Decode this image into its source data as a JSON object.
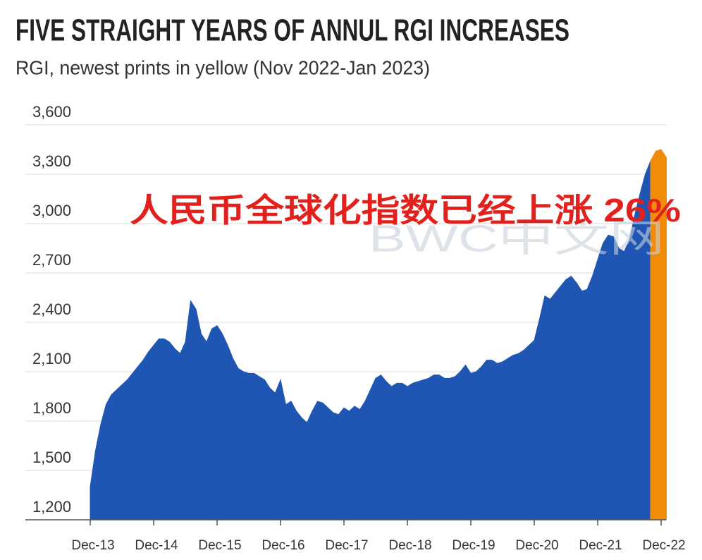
{
  "chart_data": {
    "type": "area",
    "title": "FIVE STRAIGHT YEARS OF ANNUL RGI INCREASES",
    "subtitle": "RGI, newest prints in yellow (Nov 2022-Jan 2023)",
    "annotation": "人民币全球化指数已经上涨 26%",
    "watermark": "BWC中文网",
    "categories": [
      "Dec-13",
      null,
      null,
      null,
      null,
      null,
      null,
      null,
      null,
      null,
      null,
      null,
      "Dec-14",
      null,
      null,
      null,
      null,
      null,
      null,
      null,
      null,
      null,
      null,
      null,
      "Dec-15",
      null,
      null,
      null,
      null,
      null,
      null,
      null,
      null,
      null,
      null,
      null,
      "Dec-16",
      null,
      null,
      null,
      null,
      null,
      null,
      null,
      null,
      null,
      null,
      null,
      "Dec-17",
      null,
      null,
      null,
      null,
      null,
      null,
      null,
      null,
      null,
      null,
      null,
      "Dec-18",
      null,
      null,
      null,
      null,
      null,
      null,
      null,
      null,
      null,
      null,
      null,
      "Dec-19",
      null,
      null,
      null,
      null,
      null,
      null,
      null,
      null,
      null,
      null,
      null,
      "Dec-20",
      null,
      null,
      null,
      null,
      null,
      null,
      null,
      null,
      null,
      null,
      null,
      "Dec-21",
      null,
      null,
      null,
      null,
      null,
      null,
      null,
      null,
      null,
      null,
      null,
      "Dec-22",
      null
    ],
    "series": [
      {
        "color": "#1f56b4",
        "values": [
          1400,
          1620,
          1780,
          1900,
          1960,
          1990,
          2020,
          2050,
          2090,
          2130,
          2170,
          2220,
          2260,
          2300,
          2300,
          2280,
          2240,
          2210,
          2280,
          2530,
          2480,
          2330,
          2280,
          2360,
          2380,
          2330,
          2260,
          2180,
          2120,
          2100,
          2090,
          2090,
          2070,
          2050,
          2000,
          1970,
          2050,
          1900,
          1920,
          1860,
          1820,
          1790,
          1860,
          1920,
          1910,
          1880,
          1850,
          1840,
          1880,
          1860,
          1890,
          1870,
          1920,
          1990,
          2060,
          2080,
          2040,
          2010,
          2030,
          2030,
          2010,
          2030,
          2040,
          2050,
          2060,
          2080,
          2080,
          2060,
          2060,
          2070,
          2100,
          2140,
          2090,
          2100,
          2130,
          2170,
          2170,
          2150,
          2160,
          2180,
          2200,
          2210,
          2230,
          2260,
          2290,
          2420,
          2560,
          2540,
          2580,
          2620,
          2660,
          2680,
          2640,
          2590,
          2600,
          2680,
          2780,
          2880,
          2930,
          2920,
          2850,
          2830,
          2900,
          3050,
          3180,
          3300,
          3380,
          null,
          null,
          null
        ]
      },
      {
        "color": "#f08c0a",
        "values": [
          null,
          null,
          null,
          null,
          null,
          null,
          null,
          null,
          null,
          null,
          null,
          null,
          null,
          null,
          null,
          null,
          null,
          null,
          null,
          null,
          null,
          null,
          null,
          null,
          null,
          null,
          null,
          null,
          null,
          null,
          null,
          null,
          null,
          null,
          null,
          null,
          null,
          null,
          null,
          null,
          null,
          null,
          null,
          null,
          null,
          null,
          null,
          null,
          null,
          null,
          null,
          null,
          null,
          null,
          null,
          null,
          null,
          null,
          null,
          null,
          null,
          null,
          null,
          null,
          null,
          null,
          null,
          null,
          null,
          null,
          null,
          null,
          null,
          null,
          null,
          null,
          null,
          null,
          null,
          null,
          null,
          null,
          null,
          null,
          null,
          null,
          null,
          null,
          null,
          null,
          null,
          null,
          null,
          null,
          null,
          null,
          null,
          null,
          null,
          null,
          null,
          null,
          null,
          null,
          null,
          null,
          3380,
          3440,
          3450,
          3400
        ]
      }
    ],
    "ylim": [
      1200,
      3600
    ],
    "yticks": [
      {
        "value": 1200,
        "label": "1,200"
      },
      {
        "value": 1500,
        "label": "1,500"
      },
      {
        "value": 1800,
        "label": "1,800"
      },
      {
        "value": 2100,
        "label": "2,100"
      },
      {
        "value": 2400,
        "label": "2,400"
      },
      {
        "value": 2700,
        "label": "2,700"
      },
      {
        "value": 3000,
        "label": "3,000"
      },
      {
        "value": 3300,
        "label": "3,300"
      },
      {
        "value": 3600,
        "label": "3,600"
      }
    ],
    "grid": true
  }
}
